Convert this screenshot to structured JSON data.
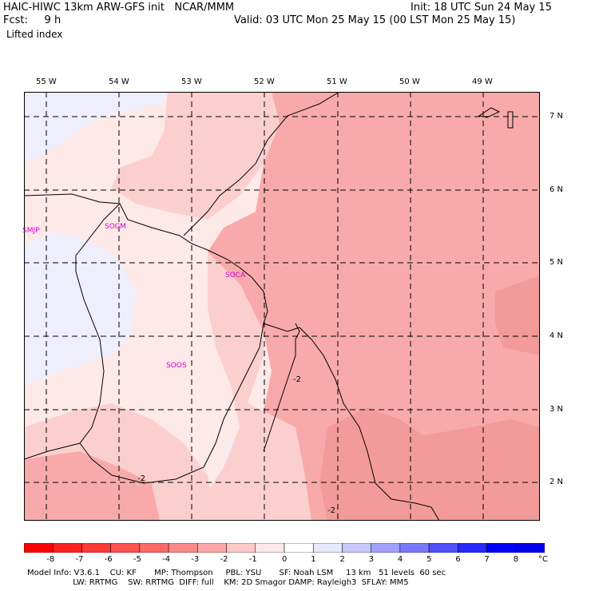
{
  "header": {
    "title_left": "HAIC-HIWC 13km ARW-GFS init   NCAR/MMM",
    "fcst_label": "Fcst:     9 h",
    "field": "Lifted index",
    "init": "Init: 18 UTC Sun 24 May 15",
    "valid": "Valid: 03 UTC Mon 25 May 15 (00 LST Mon 25 May 15)"
  },
  "longitudes": [
    "55 W",
    "54 W",
    "53 W",
    "52 W",
    "51 W",
    "50 W",
    "49 W"
  ],
  "latitudes": [
    "7 N",
    "6 N",
    "5 N",
    "4 N",
    "3 N",
    "2 N"
  ],
  "stations": [
    "SMJP",
    "SOCM",
    "SOCA",
    "SOOS"
  ],
  "contour_labels": [
    "-2",
    "-2",
    "-2"
  ],
  "colorbar": {
    "ticks": [
      "-8",
      "-7",
      "-6",
      "-5",
      "-4",
      "-3",
      "-2",
      "-1",
      "0",
      "1",
      "2",
      "3",
      "4",
      "5",
      "6",
      "7",
      "8"
    ],
    "unit": "°C",
    "colors": [
      "#ff0000",
      "#ff2020",
      "#ff3838",
      "#ff5050",
      "#ff6868",
      "#ff8888",
      "#ffa8a8",
      "#ffc8c8",
      "#ffe8e8",
      "#ffffff",
      "#e8e8ff",
      "#c8c8ff",
      "#a0a0ff",
      "#7878ff",
      "#5050ff",
      "#2828ff",
      "#0000ff",
      "#0000ee"
    ]
  },
  "model_info": {
    "line1": "Model Info: V3.6.1    CU: KF       MP: Thompson     PBL: YSU       SF: Noah LSM     13 km   51 levels  60 sec",
    "line2": "                  LW: RRTMG    SW: RRTMG  DIFF: full    KM: 2D Smagor DAMP: Rayleigh3  SFLAY: MM5"
  },
  "colors": {
    "li_minus1": "#fde9e7",
    "li_minus2": "#fccfcf",
    "li_minus3": "#f8aaaa",
    "li_minus4": "#f39a9a",
    "li_zero": "#eeeefc"
  }
}
